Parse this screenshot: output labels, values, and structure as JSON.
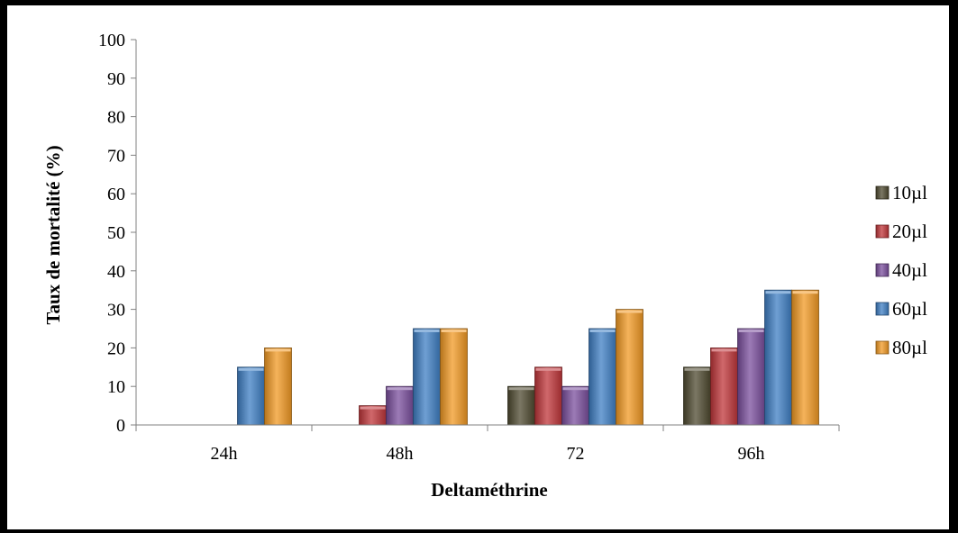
{
  "chart_data": {
    "type": "bar",
    "title": "",
    "xlabel": "Deltaméthrine",
    "ylabel": "Taux de mortalité (%)",
    "categories": [
      "24h",
      "48h",
      "72",
      "96h"
    ],
    "ylim": [
      0,
      100
    ],
    "yticks": [
      0,
      10,
      20,
      30,
      40,
      50,
      60,
      70,
      80,
      90,
      100
    ],
    "grid": false,
    "legend_position": "right",
    "series": [
      {
        "name": "10µl",
        "color": "#4f4a30",
        "values": [
          0,
          0,
          10,
          15
        ]
      },
      {
        "name": "20µl",
        "color": "#c0363a",
        "values": [
          0,
          5,
          15,
          20
        ]
      },
      {
        "name": "40µl",
        "color": "#7b4f9d",
        "values": [
          0,
          10,
          10,
          25
        ]
      },
      {
        "name": "60µl",
        "color": "#3f7fc4",
        "values": [
          15,
          25,
          25,
          35
        ]
      },
      {
        "name": "80µl",
        "color": "#f29a24",
        "values": [
          20,
          25,
          30,
          35
        ]
      }
    ]
  }
}
